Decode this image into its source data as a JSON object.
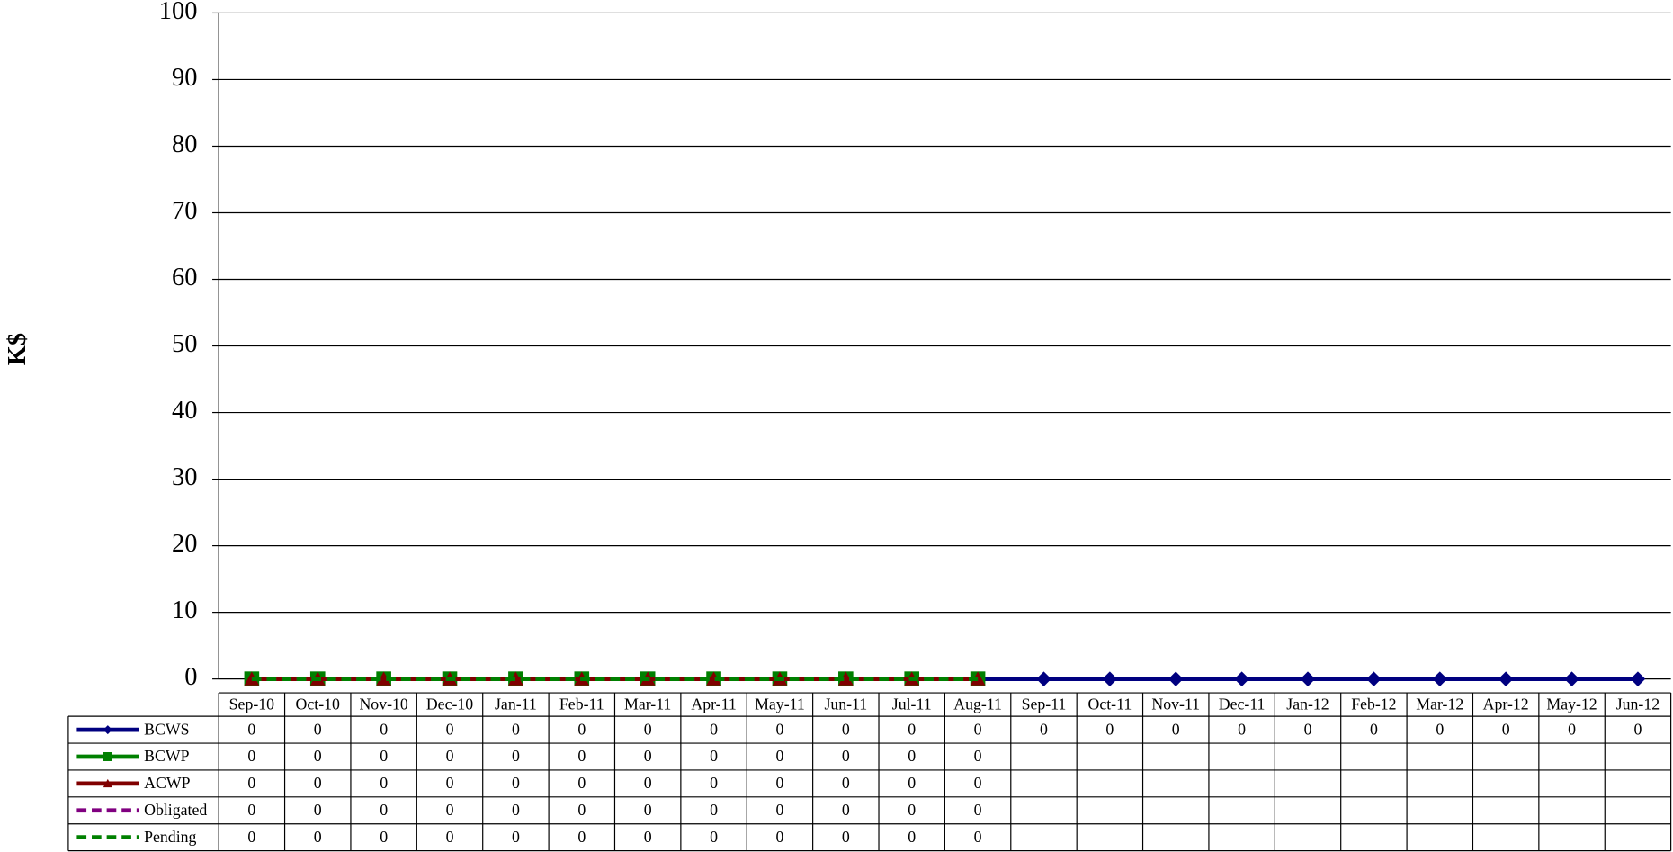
{
  "chart_data": {
    "type": "line",
    "y_label": "K$",
    "ylim": [
      0,
      100
    ],
    "yticks": [
      0,
      10,
      20,
      30,
      40,
      50,
      60,
      70,
      80,
      90,
      100
    ],
    "grid": true,
    "categories": [
      "Sep-10",
      "Oct-10",
      "Nov-10",
      "Dec-10",
      "Jan-11",
      "Feb-11",
      "Mar-11",
      "Apr-11",
      "May-11",
      "Jun-11",
      "Jul-11",
      "Aug-11",
      "Sep-11",
      "Oct-11",
      "Nov-11",
      "Dec-11",
      "Jan-12",
      "Feb-12",
      "Mar-12",
      "Apr-12",
      "May-12",
      "Jun-12"
    ],
    "series": [
      {
        "name": "BCWS",
        "color": "#000080",
        "marker": "diamond",
        "dash": false,
        "values": [
          0,
          0,
          0,
          0,
          0,
          0,
          0,
          0,
          0,
          0,
          0,
          0,
          0,
          0,
          0,
          0,
          0,
          0,
          0,
          0,
          0,
          0
        ]
      },
      {
        "name": "BCWP",
        "color": "#008000",
        "marker": "square",
        "dash": false,
        "values": [
          0,
          0,
          0,
          0,
          0,
          0,
          0,
          0,
          0,
          0,
          0,
          0,
          null,
          null,
          null,
          null,
          null,
          null,
          null,
          null,
          null,
          null
        ]
      },
      {
        "name": "ACWP",
        "color": "#800000",
        "marker": "triangle",
        "dash": false,
        "values": [
          0,
          0,
          0,
          0,
          0,
          0,
          0,
          0,
          0,
          0,
          0,
          0,
          null,
          null,
          null,
          null,
          null,
          null,
          null,
          null,
          null,
          null
        ]
      },
      {
        "name": "Obligated",
        "color": "#800080",
        "marker": "none",
        "dash": true,
        "values": [
          0,
          0,
          0,
          0,
          0,
          0,
          0,
          0,
          0,
          0,
          0,
          0,
          null,
          null,
          null,
          null,
          null,
          null,
          null,
          null,
          null,
          null
        ]
      },
      {
        "name": "Pending",
        "color": "#008000",
        "marker": "none",
        "dash": true,
        "values": [
          0,
          0,
          0,
          0,
          0,
          0,
          0,
          0,
          0,
          0,
          0,
          0,
          null,
          null,
          null,
          null,
          null,
          null,
          null,
          null,
          null,
          null
        ]
      }
    ]
  }
}
